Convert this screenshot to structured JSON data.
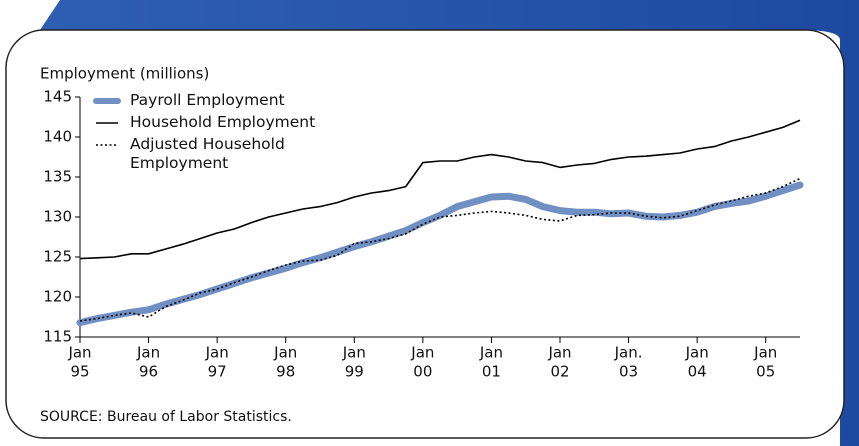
{
  "chart_data": {
    "type": "line",
    "y_label": "Employment (millions)",
    "source": "SOURCE: Bureau of Labor Statistics.",
    "legend": "upper left",
    "grid": false,
    "x": [
      1995,
      1995.25,
      1995.5,
      1995.75,
      1996,
      1996.25,
      1996.5,
      1996.75,
      1997,
      1997.25,
      1997.5,
      1997.75,
      1998,
      1998.25,
      1998.5,
      1998.75,
      1999,
      1999.25,
      1999.5,
      1999.75,
      2000,
      2000.25,
      2000.5,
      2000.75,
      2001,
      2001.25,
      2001.5,
      2001.75,
      2002,
      2002.25,
      2002.5,
      2002.75,
      2003,
      2003.25,
      2003.5,
      2003.75,
      2004,
      2004.25,
      2004.5,
      2004.75,
      2005,
      2005.25,
      2005.5
    ],
    "series": [
      {
        "name": "Payroll Employment",
        "color": "#7090c4",
        "style": "thick",
        "values": [
          116.8,
          117.3,
          117.7,
          118.1,
          118.4,
          119.1,
          119.7,
          120.3,
          121.0,
          121.7,
          122.4,
          123.0,
          123.6,
          124.3,
          124.9,
          125.6,
          126.3,
          126.9,
          127.6,
          128.3,
          129.3,
          130.2,
          131.3,
          131.9,
          132.5,
          132.6,
          132.2,
          131.3,
          130.8,
          130.6,
          130.6,
          130.4,
          130.5,
          130.1,
          130.0,
          130.2,
          130.6,
          131.3,
          131.7,
          132.0,
          132.6,
          133.3,
          134.0
        ]
      },
      {
        "name": "Household Employment",
        "color": "#000000",
        "style": "solid",
        "values": [
          124.8,
          124.9,
          125.0,
          125.4,
          125.4,
          126.0,
          126.6,
          127.3,
          128.0,
          128.5,
          129.3,
          130.0,
          130.5,
          131.0,
          131.3,
          131.8,
          132.5,
          133.0,
          133.3,
          133.8,
          136.8,
          137.0,
          137.0,
          137.5,
          137.8,
          137.5,
          137.0,
          136.8,
          136.2,
          136.5,
          136.7,
          137.2,
          137.5,
          137.6,
          137.8,
          138.0,
          138.5,
          138.8,
          139.5,
          140.0,
          140.6,
          141.2,
          142.1
        ]
      },
      {
        "name": "Adjusted Household Employment",
        "color": "#000000",
        "style": "dotted",
        "values": [
          117.0,
          117.3,
          117.7,
          118.0,
          117.5,
          118.8,
          119.6,
          120.5,
          121.0,
          121.8,
          122.5,
          123.3,
          124.0,
          124.5,
          124.6,
          125.2,
          126.7,
          126.9,
          127.3,
          127.9,
          129.1,
          130.0,
          130.2,
          130.5,
          130.7,
          130.5,
          130.2,
          129.7,
          129.5,
          130.2,
          130.3,
          130.5,
          130.5,
          130.1,
          129.9,
          130.1,
          130.8,
          131.5,
          132.0,
          132.6,
          133.0,
          133.8,
          134.8
        ]
      }
    ],
    "xlim": [
      1995,
      2005.5
    ],
    "xticks": [
      {
        "value": 1995,
        "label": "Jan",
        "year": "95"
      },
      {
        "value": 1996,
        "label": "Jan",
        "year": "96"
      },
      {
        "value": 1997,
        "label": "Jan",
        "year": "97"
      },
      {
        "value": 1998,
        "label": "Jan",
        "year": "98"
      },
      {
        "value": 1999,
        "label": "Jan",
        "year": "99"
      },
      {
        "value": 2000,
        "label": "Jan",
        "year": "00"
      },
      {
        "value": 2001,
        "label": "Jan",
        "year": "01"
      },
      {
        "value": 2002,
        "label": "Jan",
        "year": "02"
      },
      {
        "value": 2003,
        "label": "Jan.",
        "year": "03"
      },
      {
        "value": 2004,
        "label": "Jan",
        "year": "04"
      },
      {
        "value": 2005,
        "label": "Jan",
        "year": "05"
      }
    ],
    "ylim": [
      115,
      145
    ],
    "yticks": [
      115,
      120,
      125,
      130,
      135,
      140,
      145
    ]
  }
}
